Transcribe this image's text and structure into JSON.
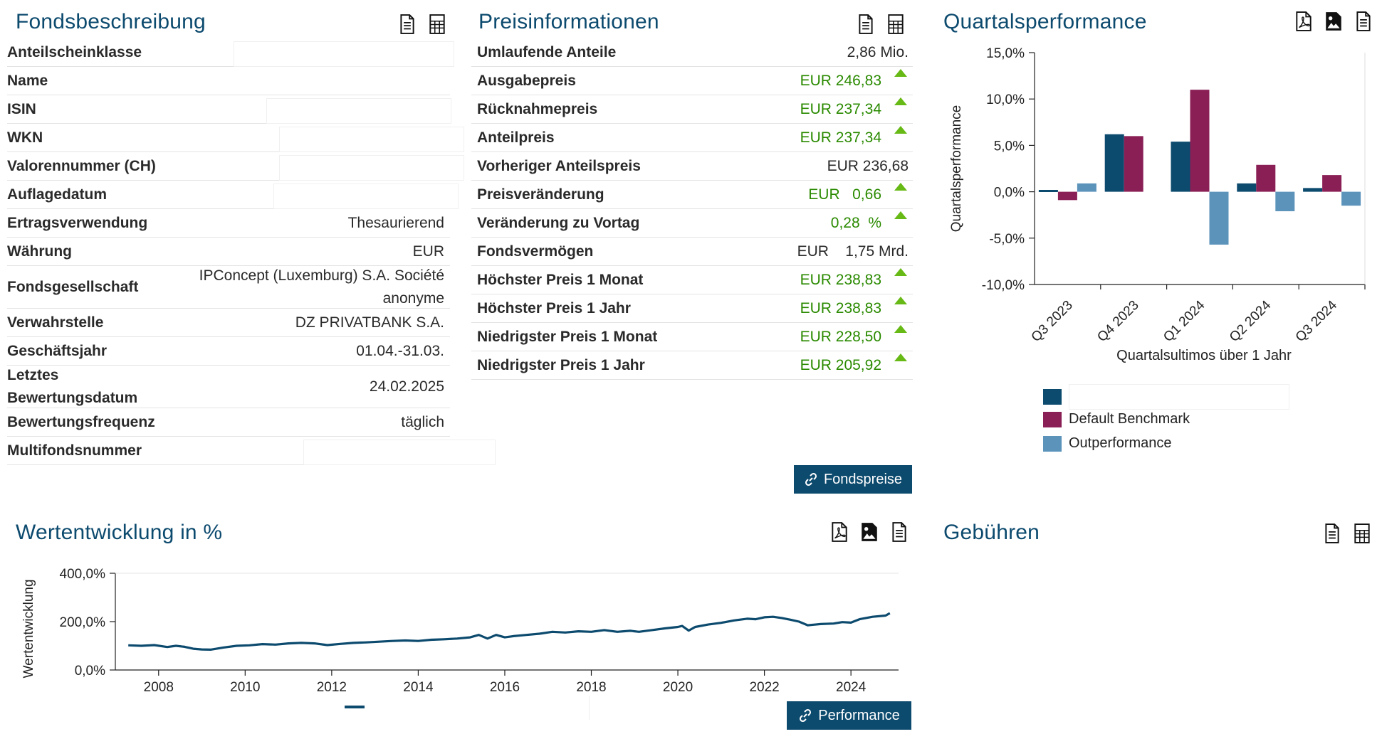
{
  "fonds": {
    "title": "Fondsbeschreibung",
    "rows": [
      {
        "label": "Anteilscheinklasse",
        "value": ""
      },
      {
        "label": "Name",
        "value": ""
      },
      {
        "label": "ISIN",
        "value": ""
      },
      {
        "label": "WKN",
        "value": ""
      },
      {
        "label": "Valorennummer (CH)",
        "value": ""
      },
      {
        "label": "Auflagedatum",
        "value": ""
      },
      {
        "label": "Ertragsverwendung",
        "value": "Thesaurierend"
      },
      {
        "label": "Währung",
        "value": "EUR"
      },
      {
        "label": "Fondsgesellschaft",
        "value_line1": "IPConcept (Luxemburg) S.A. Société",
        "value_line2": "anonyme"
      },
      {
        "label": "Verwahrstelle",
        "value": "DZ PRIVATBANK S.A."
      },
      {
        "label": "Geschäftsjahr",
        "value": "01.04.-31.03."
      },
      {
        "label_line1": "Letztes",
        "label_line2": "Bewertungsdatum",
        "value": "24.02.2025"
      },
      {
        "label": "Bewertungsfrequenz",
        "value": "täglich"
      },
      {
        "label": "Multifondsnummer",
        "value": ""
      }
    ]
  },
  "preis": {
    "title": "Preisinformationen",
    "rows": [
      {
        "label": "Umlaufende Anteile",
        "value": "2,86 Mio.",
        "green": false,
        "up": false
      },
      {
        "label": "Ausgabepreis",
        "value": "EUR 246,83",
        "green": true,
        "up": true
      },
      {
        "label": "Rücknahmepreis",
        "value": "EUR 237,34",
        "green": true,
        "up": true
      },
      {
        "label": "Anteilpreis",
        "value": "EUR 237,34",
        "green": true,
        "up": true
      },
      {
        "label": "Vorheriger Anteilspreis",
        "value": "EUR 236,68",
        "green": false,
        "up": false
      },
      {
        "label": "Preisveränderung",
        "value": "EUR   0,66",
        "green": true,
        "up": true
      },
      {
        "label": "Veränderung zu Vortag",
        "value": "0,28  %",
        "green": true,
        "up": true
      },
      {
        "label": "Fondsvermögen",
        "value": "EUR    1,75 Mrd.",
        "green": false,
        "up": false
      },
      {
        "label": "Höchster Preis 1 Monat",
        "value": "EUR 238,83",
        "green": true,
        "up": true
      },
      {
        "label": "Höchster Preis 1 Jahr",
        "value": "EUR 238,83",
        "green": true,
        "up": true
      },
      {
        "label": "Niedrigster Preis 1 Monat",
        "value": "EUR 228,50",
        "green": true,
        "up": true
      },
      {
        "label": "Niedrigster Preis 1 Jahr",
        "value": "EUR 205,92",
        "green": true,
        "up": true
      }
    ],
    "button_label": "Fondspreise"
  },
  "quartal": {
    "title": "Quartalsperformance"
  },
  "wert": {
    "title": "Wertentwicklung in %",
    "button_label": "Performance"
  },
  "gebuehren": {
    "title": "Gebühren"
  },
  "icons": {
    "doc": "document-icon",
    "table": "spreadsheet-icon",
    "pdf": "pdf-icon",
    "image": "image-icon",
    "link": "link-icon"
  },
  "colors": {
    "title": "#0c4a6e",
    "fund": "#0c4a6e",
    "benchmark": "#8a1f55",
    "outperformance": "#5b93bb",
    "green_text": "#2a8a00",
    "green_triangle": "#67b915",
    "button": "#0c4a6e"
  },
  "chart_data": [
    {
      "type": "bar",
      "title": "",
      "xlabel": "Quartalsultimos über 1 Jahr",
      "ylabel": "Quartalsperformance",
      "categories": [
        "Q3 2023",
        "Q4 2023",
        "Q1 2024",
        "Q2 2024",
        "Q3 2024"
      ],
      "ylim": [
        -10,
        15
      ],
      "yticks": [
        "15,0%",
        "10,0%",
        "5,0%",
        "0,0%",
        "-5,0%",
        "-10,0%"
      ],
      "ytick_values": [
        15,
        10,
        5,
        0,
        -5,
        -10
      ],
      "grid": false,
      "legend_position": "bottom",
      "series": [
        {
          "values": [
            0.2,
            6.2,
            5.4,
            0.9,
            0.4
          ]
        },
        {
          "name": "Default Benchmark",
          "values": [
            -0.9,
            6.0,
            11.0,
            2.9,
            1.8
          ]
        },
        {
          "name": "Outperformance",
          "values": [
            0.9,
            0.0,
            -5.7,
            -2.1,
            -1.5
          ]
        }
      ]
    },
    {
      "type": "line",
      "title": "",
      "xlabel": "",
      "ylabel": "Wertentwicklung",
      "xlim": [
        2007.0,
        2025.1
      ],
      "ylim": [
        0,
        400
      ],
      "xticks": [
        "2008",
        "2010",
        "2012",
        "2014",
        "2016",
        "2018",
        "2020",
        "2022",
        "2024"
      ],
      "xtick_values": [
        2008,
        2010,
        2012,
        2014,
        2016,
        2018,
        2020,
        2022,
        2024
      ],
      "yticks": [
        "400,0%",
        "200,0%",
        "0,0%"
      ],
      "ytick_values": [
        400,
        200,
        0
      ],
      "grid": false,
      "series": [
        {
          "x": [
            2007.3,
            2007.6,
            2007.9,
            2008.2,
            2008.4,
            2008.6,
            2008.8,
            2009.0,
            2009.2,
            2009.5,
            2009.8,
            2010.1,
            2010.4,
            2010.7,
            2011.0,
            2011.3,
            2011.6,
            2011.9,
            2012.2,
            2012.5,
            2012.8,
            2013.1,
            2013.4,
            2013.7,
            2014.0,
            2014.3,
            2014.6,
            2014.9,
            2015.2,
            2015.4,
            2015.6,
            2015.8,
            2016.0,
            2016.2,
            2016.5,
            2016.8,
            2017.1,
            2017.4,
            2017.7,
            2018.0,
            2018.3,
            2018.6,
            2018.9,
            2019.1,
            2019.4,
            2019.7,
            2020.0,
            2020.1,
            2020.25,
            2020.4,
            2020.7,
            2021.0,
            2021.3,
            2021.6,
            2021.8,
            2022.0,
            2022.2,
            2022.4,
            2022.6,
            2022.8,
            2023.0,
            2023.3,
            2023.6,
            2023.8,
            2024.0,
            2024.2,
            2024.5,
            2024.8,
            2024.9
          ],
          "values": [
            102,
            100,
            103,
            95,
            100,
            96,
            88,
            85,
            84,
            93,
            100,
            102,
            107,
            105,
            110,
            112,
            110,
            103,
            108,
            112,
            114,
            117,
            120,
            122,
            120,
            125,
            127,
            130,
            135,
            145,
            130,
            145,
            135,
            140,
            145,
            150,
            158,
            155,
            160,
            158,
            165,
            158,
            162,
            158,
            165,
            172,
            178,
            182,
            163,
            178,
            188,
            195,
            205,
            212,
            210,
            218,
            220,
            215,
            208,
            200,
            185,
            190,
            192,
            198,
            196,
            210,
            220,
            225,
            235
          ]
        }
      ]
    }
  ]
}
